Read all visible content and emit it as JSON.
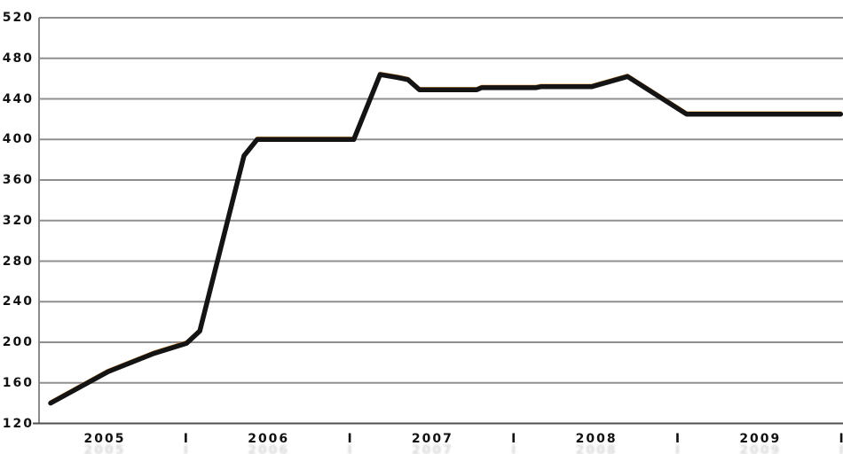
{
  "chart_data": {
    "type": "line",
    "title": "",
    "xlabel": "",
    "ylabel": "",
    "grid": "horizontal",
    "legend": "none",
    "x_axis": {
      "range": [
        2004.6,
        2009.5
      ],
      "ticks": [
        {
          "label": "2005",
          "t": 2005.0
        },
        {
          "label": "I",
          "t": 2005.5
        },
        {
          "label": "2006",
          "t": 2006.0
        },
        {
          "label": "I",
          "t": 2006.5
        },
        {
          "label": "2007",
          "t": 2007.0
        },
        {
          "label": "I",
          "t": 2007.5
        },
        {
          "label": "2008",
          "t": 2008.0
        },
        {
          "label": "I",
          "t": 2008.5
        },
        {
          "label": "2009",
          "t": 2009.0
        },
        {
          "label": "I",
          "t": 2009.5
        }
      ]
    },
    "y_axis": {
      "range": [
        120,
        520
      ],
      "tick_step": 40,
      "ticks": [
        520,
        480,
        440,
        400,
        360,
        320,
        280,
        240,
        200,
        160,
        120
      ]
    },
    "series": [
      {
        "name": "underlay-orange",
        "color": "#ee9f4a",
        "stroke_width": 3.5,
        "points": [
          [
            2004.67,
            140
          ],
          [
            2005.02,
            171
          ],
          [
            2005.3,
            189
          ],
          [
            2005.5,
            199
          ],
          [
            2005.58,
            211
          ],
          [
            2005.85,
            384
          ],
          [
            2005.93,
            400
          ],
          [
            2006.52,
            400
          ],
          [
            2006.68,
            464
          ],
          [
            2006.79,
            461
          ],
          [
            2006.85,
            459
          ],
          [
            2006.92,
            449
          ],
          [
            2007.27,
            449
          ],
          [
            2007.3,
            451
          ],
          [
            2007.63,
            451
          ],
          [
            2007.66,
            452
          ],
          [
            2007.97,
            452
          ],
          [
            2008.19,
            462
          ],
          [
            2008.55,
            425
          ],
          [
            2009.49,
            425
          ]
        ]
      },
      {
        "name": "main-black",
        "color": "#141414",
        "stroke_width": 5.5,
        "points": [
          [
            2004.67,
            140
          ],
          [
            2005.02,
            171
          ],
          [
            2005.3,
            189
          ],
          [
            2005.5,
            199
          ],
          [
            2005.58,
            211
          ],
          [
            2005.85,
            384
          ],
          [
            2005.93,
            400
          ],
          [
            2006.52,
            400
          ],
          [
            2006.68,
            464
          ],
          [
            2006.79,
            461
          ],
          [
            2006.85,
            459
          ],
          [
            2006.92,
            449
          ],
          [
            2007.27,
            449
          ],
          [
            2007.3,
            451
          ],
          [
            2007.63,
            451
          ],
          [
            2007.66,
            452
          ],
          [
            2007.97,
            452
          ],
          [
            2008.19,
            462
          ],
          [
            2008.55,
            425
          ],
          [
            2009.49,
            425
          ]
        ]
      }
    ]
  },
  "colors": {
    "background": "#ffffff",
    "gridline": "#8f8f8f",
    "left_axis": "#8a8a8a",
    "bottom_axis": "#4f4f4f",
    "tick_label": "#111111"
  }
}
